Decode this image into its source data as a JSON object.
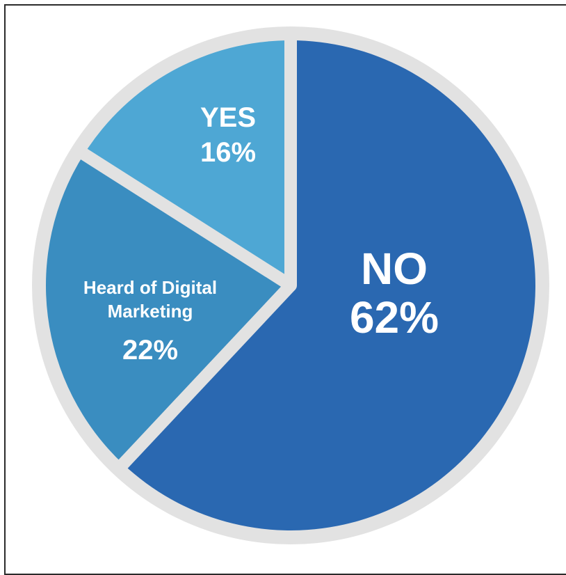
{
  "chart_data": {
    "type": "pie",
    "slices": [
      {
        "category": "NO",
        "value": 62,
        "display": "62%",
        "color": "#2a68b1"
      },
      {
        "category": "Heard of Digital Marketing",
        "value": 22,
        "display": "22%",
        "color": "#3a8dc0"
      },
      {
        "category": "YES",
        "value": 16,
        "display": "16%",
        "color": "#4ea7d4"
      }
    ],
    "labels": {
      "no_name": "NO",
      "no_value": "62%",
      "heard_line1": "Heard of Digital",
      "heard_line2": "Marketing",
      "heard_value": "22%",
      "yes_name": "YES",
      "yes_value": "16%"
    },
    "ring_color": "#e2e2e2",
    "separator_color": "#e2e2e2"
  }
}
